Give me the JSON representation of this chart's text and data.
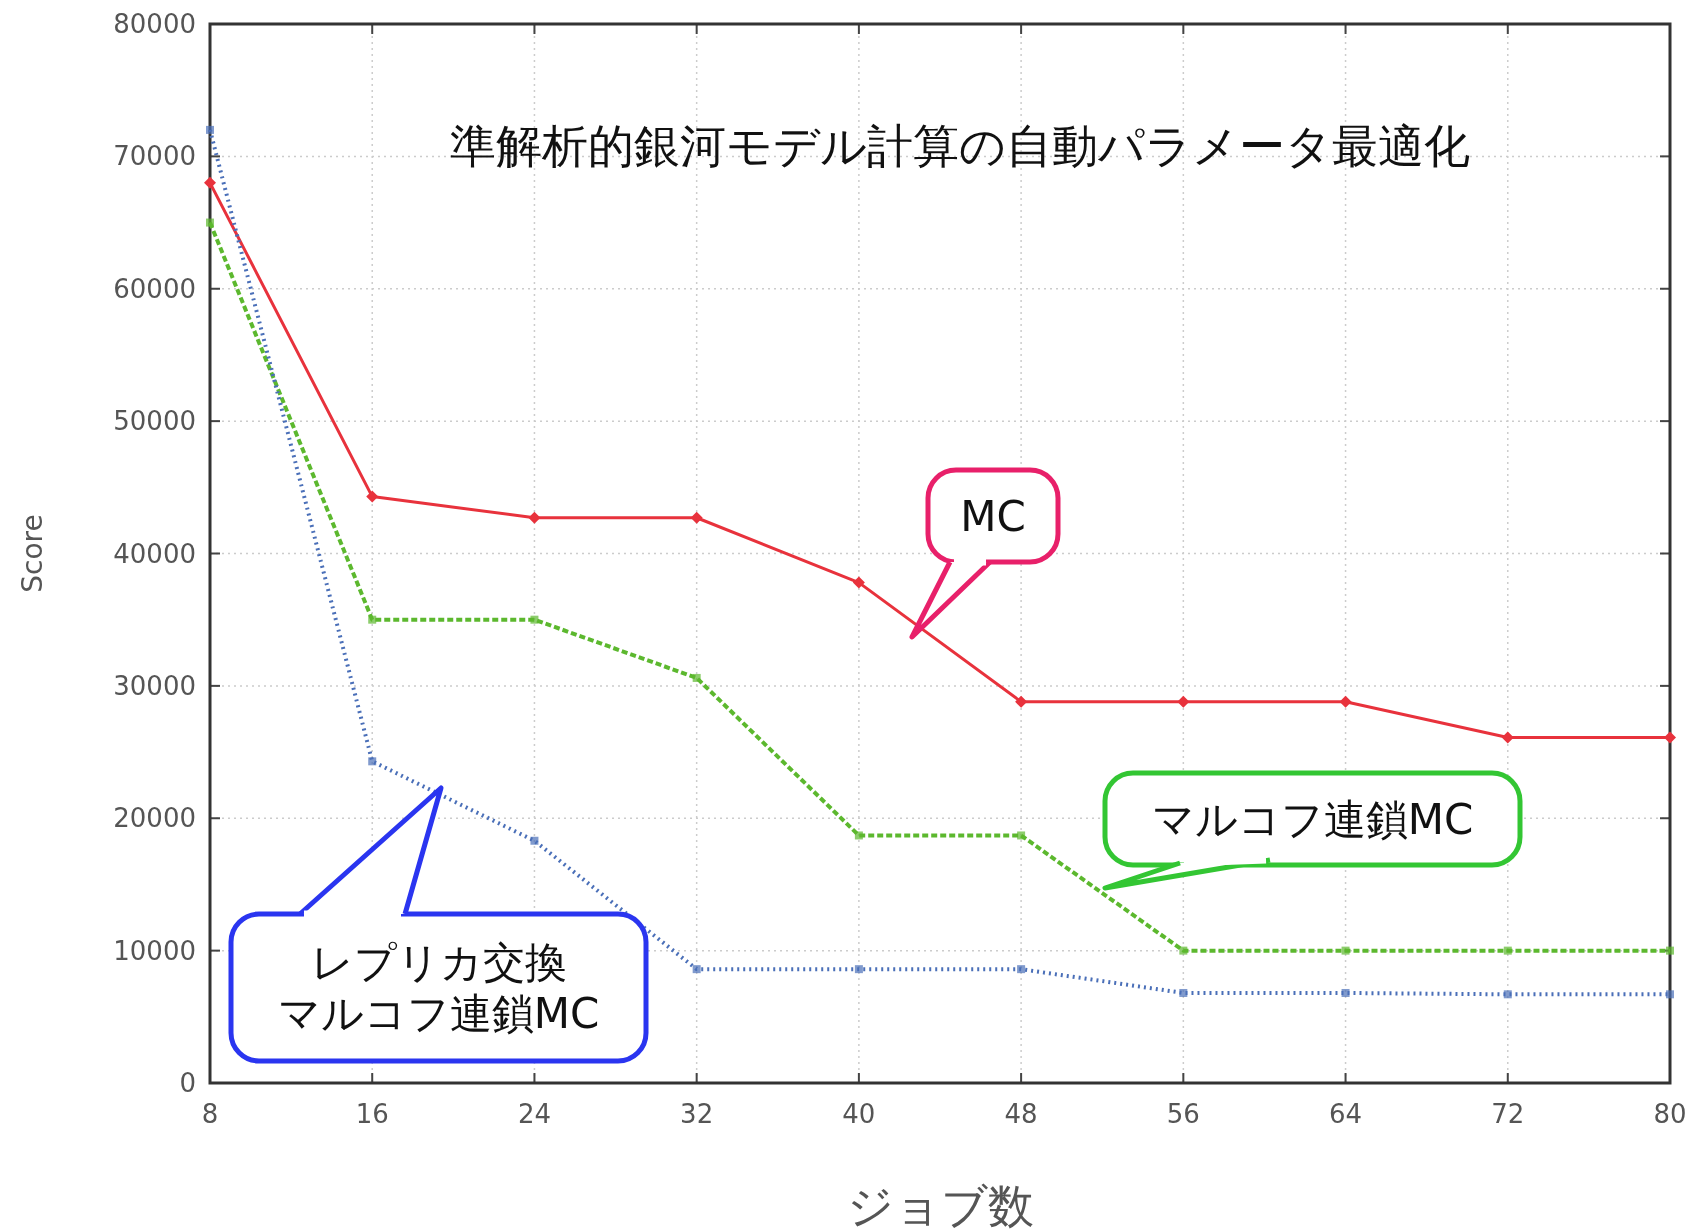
{
  "chart_data": {
    "type": "line",
    "title": "準解析的銀河モデル計算の自動パラメータ最適化",
    "xlabel": "ジョブ数",
    "ylabel": "Score",
    "x": [
      8,
      16,
      24,
      32,
      40,
      48,
      56,
      64,
      72,
      80
    ],
    "xlim": [
      8,
      80
    ],
    "xticks": [
      8,
      16,
      24,
      32,
      40,
      48,
      56,
      64,
      72,
      80
    ],
    "ylim": [
      0,
      80000
    ],
    "yticks": [
      0,
      10000,
      20000,
      30000,
      40000,
      50000,
      60000,
      70000,
      80000
    ],
    "grid": true,
    "series": [
      {
        "name": "MC",
        "color": "#e8323c",
        "line_style": "solid",
        "marker": "diamond",
        "values": [
          68000,
          44300,
          42700,
          42700,
          37800,
          28800,
          28800,
          28800,
          26100,
          26100
        ]
      },
      {
        "name": "マルコフ連鎖MC",
        "color": "#5cb82e",
        "line_style": "dashed",
        "marker": "square",
        "values": [
          65000,
          35000,
          35000,
          30600,
          18700,
          18700,
          10000,
          10000,
          10000,
          10000
        ]
      },
      {
        "name": "レプリカ交換マルコフ連鎖MC",
        "color": "#4a6fb8",
        "line_style": "dotted",
        "marker": "square",
        "values": [
          72000,
          24300,
          18300,
          8600,
          8600,
          8600,
          6800,
          6800,
          6700,
          6700
        ]
      }
    ]
  }
}
